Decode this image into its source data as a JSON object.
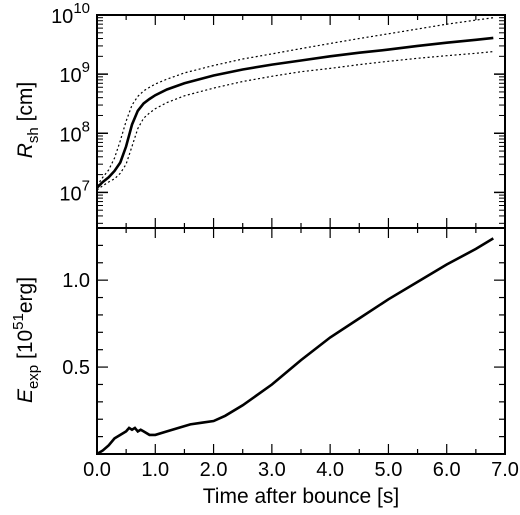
{
  "chart_data": [
    {
      "type": "line",
      "panel": "top",
      "ylabel": {
        "symbol": "R",
        "subscript": "sh",
        "unit": " [cm]"
      },
      "yscale": "log",
      "ylim": [
        2500000,
        10000000000
      ],
      "xlim": [
        0.0,
        7.0
      ],
      "yticks": [
        {
          "base": "10",
          "exp": "7",
          "value": 10000000
        },
        {
          "base": "10",
          "exp": "8",
          "value": 100000000
        },
        {
          "base": "10",
          "exp": "9",
          "value": 1000000000
        },
        {
          "base": "10",
          "exp": "10",
          "value": 10000000000
        }
      ],
      "series": [
        {
          "style": "solid",
          "x": [
            0.0,
            0.1,
            0.2,
            0.3,
            0.4,
            0.5,
            0.6,
            0.7,
            0.8,
            0.9,
            1.0,
            1.2,
            1.5,
            2.0,
            2.5,
            3.0,
            3.5,
            4.0,
            4.5,
            5.0,
            5.5,
            6.0,
            6.5,
            6.8
          ],
          "y": [
            12000000,
            15000000,
            18000000,
            23000000,
            32000000,
            60000000,
            140000000,
            240000000,
            320000000,
            380000000,
            440000000,
            550000000,
            700000000,
            950000000,
            1200000000,
            1450000000,
            1700000000,
            2000000000,
            2300000000,
            2600000000,
            3000000000,
            3400000000,
            3800000000,
            4100000000
          ]
        },
        {
          "style": "dotted",
          "x": [
            0.0,
            0.1,
            0.2,
            0.3,
            0.4,
            0.5,
            0.6,
            0.7,
            0.8,
            0.9,
            1.0,
            1.2,
            1.5,
            2.0,
            2.5,
            3.0,
            3.5,
            4.0,
            4.5,
            5.0,
            5.5,
            6.0,
            6.5,
            6.8
          ],
          "y": [
            13000000,
            18000000,
            24000000,
            38000000,
            75000000,
            160000000,
            300000000,
            420000000,
            520000000,
            600000000,
            680000000,
            820000000,
            1050000000,
            1400000000,
            1800000000,
            2200000000,
            2700000000,
            3300000000,
            4000000000,
            4800000000,
            5800000000,
            7000000000,
            8200000000,
            9000000000
          ]
        },
        {
          "style": "dotted",
          "x": [
            0.0,
            0.1,
            0.2,
            0.3,
            0.4,
            0.5,
            0.6,
            0.7,
            0.8,
            0.9,
            1.0,
            1.2,
            1.5,
            2.0,
            2.5,
            3.0,
            3.5,
            4.0,
            4.5,
            5.0,
            5.5,
            6.0,
            6.5,
            6.8
          ],
          "y": [
            11000000,
            13000000,
            15000000,
            17000000,
            21000000,
            30000000,
            60000000,
            120000000,
            180000000,
            220000000,
            260000000,
            330000000,
            430000000,
            580000000,
            750000000,
            920000000,
            1100000000,
            1250000000,
            1450000000,
            1650000000,
            1850000000,
            2050000000,
            2250000000,
            2400000000
          ]
        }
      ]
    },
    {
      "type": "line",
      "panel": "bottom",
      "ylabel": {
        "symbol": "E",
        "subscript": "exp",
        "unit_pre": " [10",
        "unit_sup": "51",
        "unit_post": "erg]"
      },
      "xlabel": "Time after bounce [s]",
      "xlim": [
        0.0,
        7.0
      ],
      "ylim": [
        0.0,
        1.3
      ],
      "xticks": [
        "0.0",
        "1.0",
        "2.0",
        "3.0",
        "4.0",
        "5.0",
        "6.0",
        "7.0"
      ],
      "yticks": [
        "0.5",
        "1.0"
      ],
      "series": [
        {
          "style": "solid",
          "x": [
            0.0,
            0.1,
            0.2,
            0.3,
            0.4,
            0.5,
            0.55,
            0.6,
            0.65,
            0.7,
            0.75,
            0.8,
            0.9,
            1.0,
            1.2,
            1.4,
            1.6,
            1.8,
            2.0,
            2.2,
            2.5,
            3.0,
            3.5,
            4.0,
            4.5,
            5.0,
            5.5,
            6.0,
            6.5,
            6.8
          ],
          "y": [
            0.0,
            0.02,
            0.05,
            0.09,
            0.11,
            0.13,
            0.15,
            0.14,
            0.15,
            0.13,
            0.14,
            0.13,
            0.11,
            0.11,
            0.13,
            0.15,
            0.17,
            0.18,
            0.19,
            0.22,
            0.28,
            0.4,
            0.54,
            0.67,
            0.78,
            0.89,
            0.99,
            1.09,
            1.18,
            1.24
          ]
        }
      ]
    }
  ]
}
